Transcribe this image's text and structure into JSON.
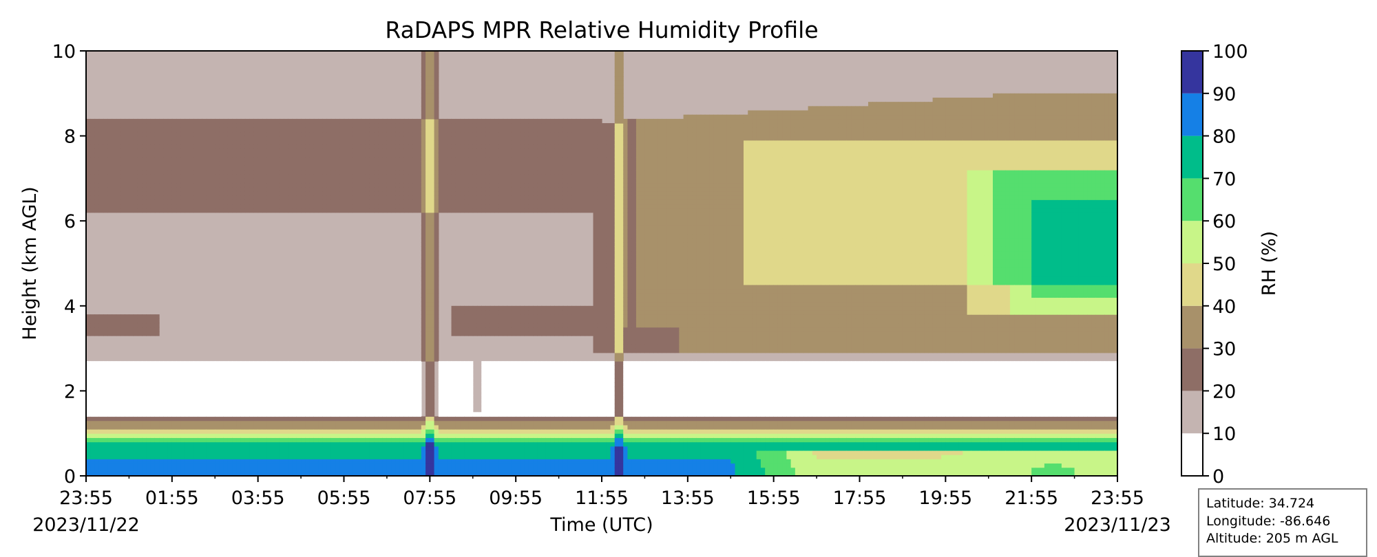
{
  "chart_data": {
    "type": "heatmap",
    "title": "RaDAPS MPR Relative Humidity Profile",
    "xlabel": "Time (UTC)",
    "ylabel": "Height (km AGL)",
    "colorbar_label": "RH (%)",
    "x_ticks": [
      "23:55",
      "01:55",
      "03:55",
      "05:55",
      "07:55",
      "09:55",
      "11:55",
      "13:55",
      "15:55",
      "17:55",
      "19:55",
      "21:55",
      "23:55"
    ],
    "x_range": [
      "2023/11/22 23:55",
      "2023/11/23 23:55"
    ],
    "start_date_label": "2023/11/22",
    "end_date_label": "2023/11/23",
    "y_ticks": [
      0,
      2,
      4,
      6,
      8,
      10
    ],
    "ylim": [
      0,
      10
    ],
    "colorbar_ticks": [
      0,
      10,
      20,
      30,
      40,
      50,
      60,
      70,
      80,
      90,
      100
    ],
    "color_levels": [
      {
        "range": [
          0,
          10
        ],
        "color": "#ffffff"
      },
      {
        "range": [
          10,
          20
        ],
        "color": "#c4b4b1"
      },
      {
        "range": [
          20,
          30
        ],
        "color": "#8e6e66"
      },
      {
        "range": [
          30,
          40
        ],
        "color": "#a8916a"
      },
      {
        "range": [
          40,
          50
        ],
        "color": "#e0d88a"
      },
      {
        "range": [
          50,
          60
        ],
        "color": "#c8f588"
      },
      {
        "range": [
          60,
          70
        ],
        "color": "#55de6e"
      },
      {
        "range": [
          70,
          80
        ],
        "color": "#00bd8a"
      },
      {
        "range": [
          80,
          90
        ],
        "color": "#1580e6"
      },
      {
        "range": [
          90,
          100
        ],
        "color": "#35359e"
      }
    ]
  },
  "station": {
    "latitude": "Latitude: 34.724",
    "longitude": "Longitude: -86.646",
    "altitude": "Altitude: 205 m AGL"
  }
}
